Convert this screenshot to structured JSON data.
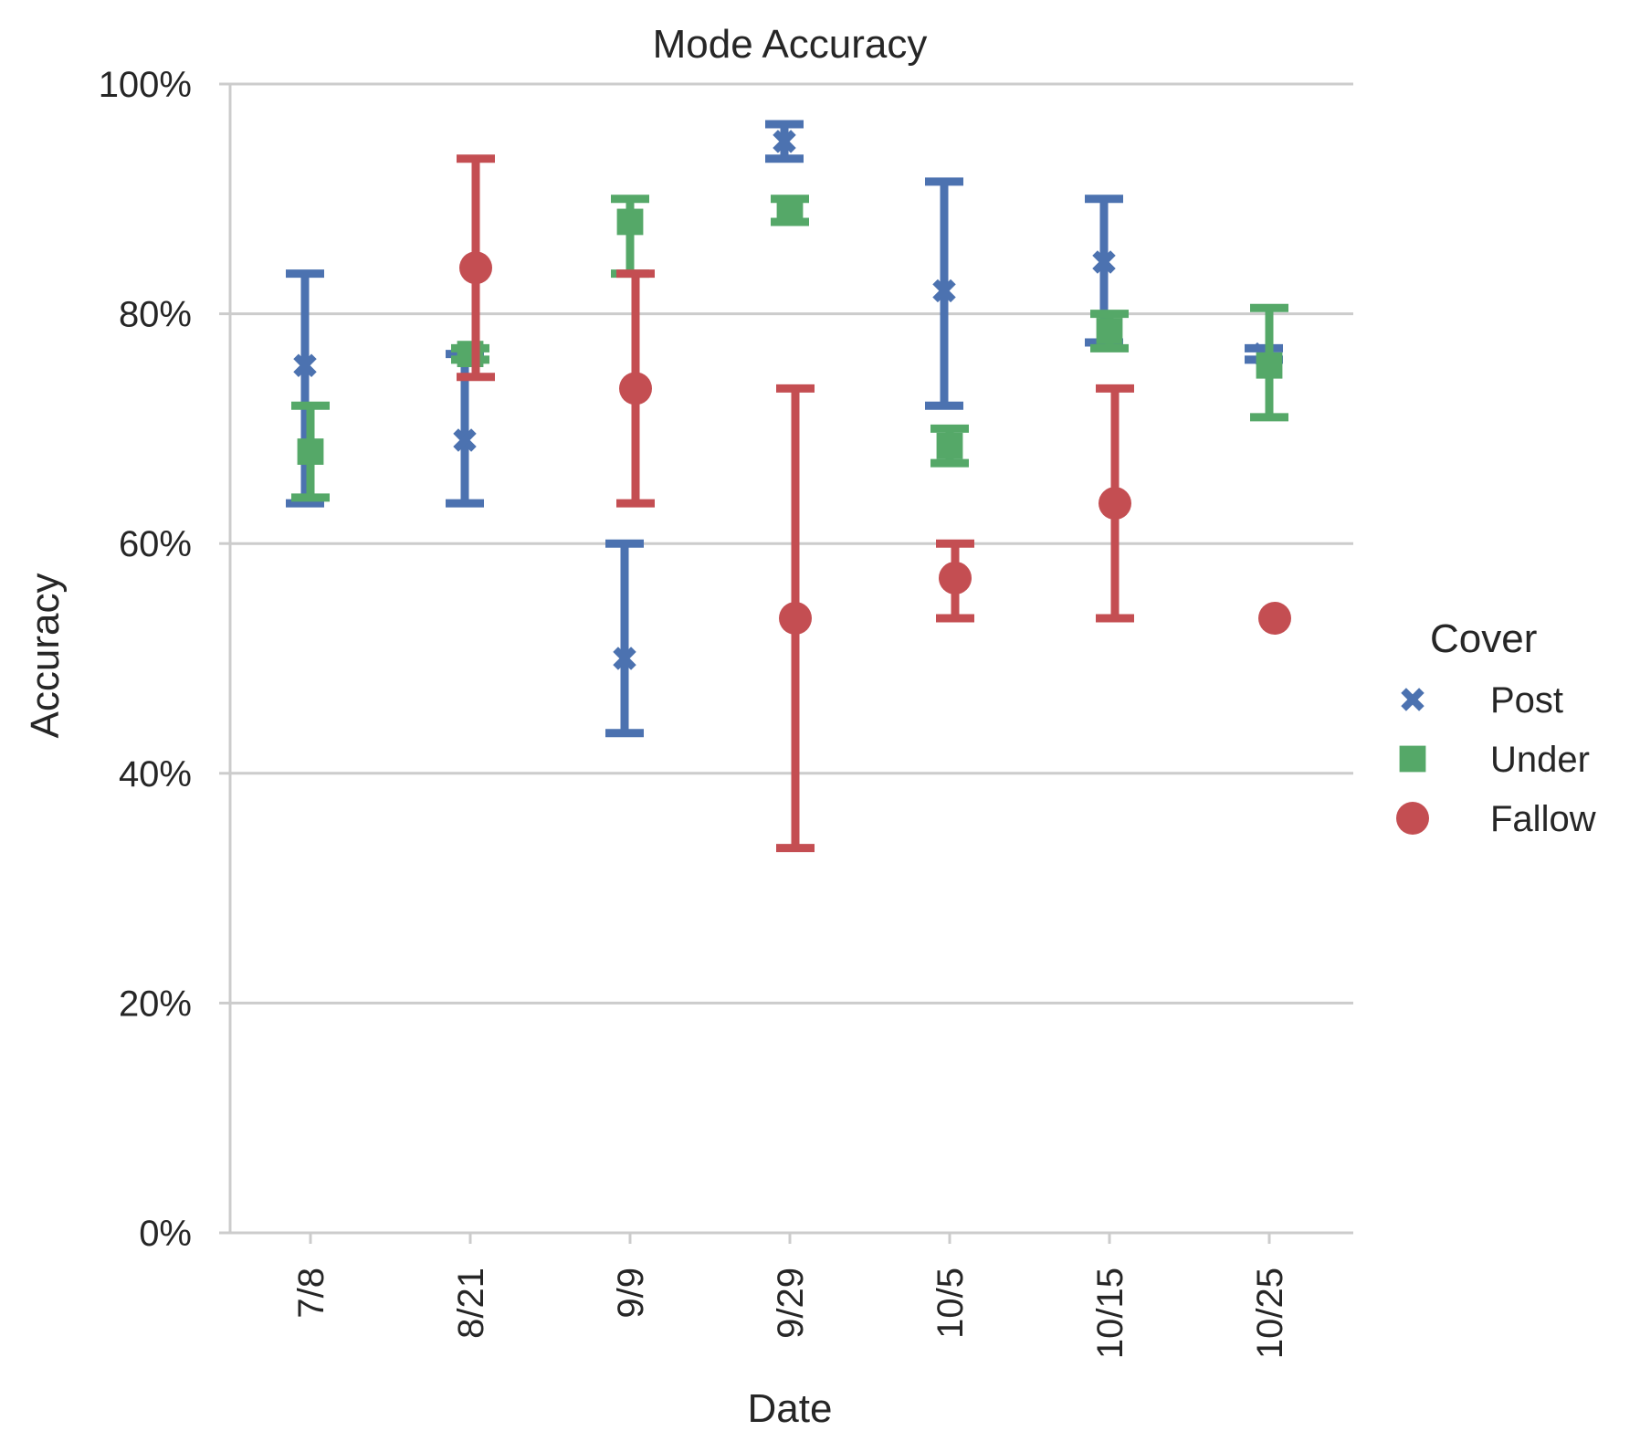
{
  "chart_data": {
    "type": "scatter",
    "title": "Mode Accuracy",
    "xlabel": "Date",
    "ylabel": "Accuracy",
    "categories": [
      "7/8",
      "8/21",
      "9/9",
      "9/29",
      "10/5",
      "10/15",
      "10/25"
    ],
    "ylim": [
      0,
      100
    ],
    "yticks": [
      "0%",
      "20%",
      "40%",
      "60%",
      "80%",
      "100%"
    ],
    "grid": true,
    "legend": {
      "title": "Cover",
      "placement": "right"
    },
    "series": [
      {
        "name": "Post",
        "color": "#4c72b0",
        "marker": "x",
        "values": [
          75.5,
          69,
          50,
          95,
          82,
          84.5,
          76.5
        ],
        "ci_low": [
          63.5,
          63.5,
          43.5,
          93.5,
          72,
          77.5,
          76
        ],
        "ci_high": [
          83.5,
          76.5,
          60,
          96.5,
          91.5,
          90,
          77
        ]
      },
      {
        "name": "Under",
        "color": "#55a868",
        "marker": "square",
        "values": [
          68,
          76.5,
          88,
          89,
          68.5,
          78.5,
          75.5
        ],
        "ci_low": [
          64,
          76,
          83.5,
          88,
          67,
          77,
          71
        ],
        "ci_high": [
          72,
          77,
          90,
          90,
          70,
          80,
          80.5
        ]
      },
      {
        "name": "Fallow",
        "color": "#c44e52",
        "marker": "circle",
        "values": [
          null,
          84,
          73.5,
          53.5,
          57,
          63.5,
          53.5
        ],
        "ci_low": [
          null,
          74.5,
          63.5,
          33.5,
          53.5,
          53.5,
          53.5
        ],
        "ci_high": [
          null,
          93.5,
          83.5,
          73.5,
          60,
          73.5,
          53.5
        ]
      }
    ]
  }
}
